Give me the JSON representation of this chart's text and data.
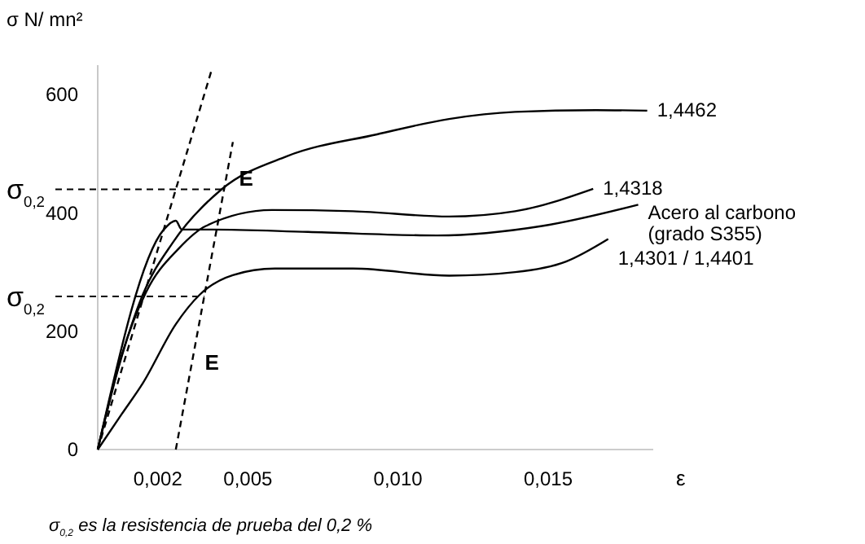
{
  "chart_data": {
    "type": "line",
    "ylabel": "σ N/ mn²",
    "xlabel": "ε",
    "annotations": [
      "σ$_{0,2}$ es la resistencia de prueba del 0,2 %",
      "E",
      "E"
    ],
    "xlim": [
      0,
      0.0185
    ],
    "ylim": [
      0,
      650
    ],
    "xticks": [
      {
        "value": 0.002,
        "label": "0,002"
      },
      {
        "value": 0.005,
        "label": "0,005"
      },
      {
        "value": 0.01,
        "label": "0,010"
      },
      {
        "value": 0.015,
        "label": "0,015"
      }
    ],
    "yticks": [
      0,
      200,
      400,
      600
    ],
    "grid": false,
    "ref_lines": [
      {
        "axis": "y",
        "value": 440,
        "label": "σ$_{0,2}$",
        "line_style": "dashed"
      },
      {
        "axis": "y",
        "value": 259,
        "label": "σ$_{0,2}$",
        "line_style": "dashed"
      }
    ],
    "series": [
      {
        "name": "1,4462",
        "color": "#000000",
        "x": [
          0,
          0.0007,
          0.0015,
          0.0025,
          0.0041,
          0.0063,
          0.0093,
          0.0117,
          0.0139,
          0.0166,
          0.0183
        ],
        "values": [
          0,
          140,
          262,
          350,
          439,
          496,
          533,
          559,
          571,
          574,
          573
        ]
      },
      {
        "name": "1,4318",
        "color": "#000000",
        "x": [
          0,
          0.0008,
          0.0016,
          0.0027,
          0.0036,
          0.0058,
          0.0085,
          0.0117,
          0.0139,
          0.0165
        ],
        "values": [
          0,
          160,
          265,
          340,
          378,
          405,
          403,
          394,
          403,
          441
        ]
      },
      {
        "name": "Acero al carbono (grado S355)",
        "color": "#000000",
        "x": [
          0,
          0.0022,
          0.0026,
          0.0028,
          0.0038,
          0.007,
          0.0113,
          0.0148,
          0.018
        ],
        "values": [
          0,
          372,
          387,
          372,
          372,
          368,
          362,
          378,
          414
        ]
      },
      {
        "name": "1,4301 / 1,4401",
        "color": "#000000",
        "x": [
          0,
          0.0008,
          0.0015,
          0.0026,
          0.0034,
          0.0045,
          0.0059,
          0.0085,
          0.0117,
          0.0139,
          0.0156,
          0.017
        ],
        "values": [
          0,
          60,
          112,
          212,
          262,
          295,
          306,
          306,
          294,
          300,
          318,
          356
        ]
      },
      {
        "color": "#000000",
        "line_style": "dashed",
        "x": [
          0,
          0.0038
        ],
        "values": [
          0,
          643
        ]
      },
      {
        "color": "#000000",
        "line_style": "dashed",
        "x": [
          0.0026,
          0.0045
        ],
        "values": [
          0,
          520
        ]
      }
    ]
  }
}
